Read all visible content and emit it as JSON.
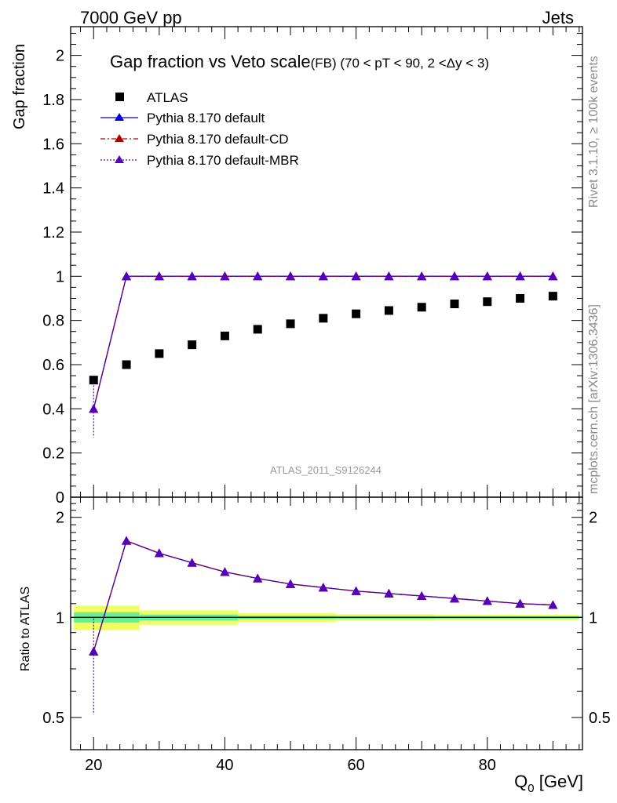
{
  "header": {
    "energy_label": "7000 GeV pp",
    "process_label": "Jets",
    "rivet_label": "Rivet 3.1.10, ≥ 100k events",
    "mcplots_label": "mcplots.cern.ch [arXiv:1306.3436]",
    "analysis_label": "ATLAS_2011_S9126244"
  },
  "colors": {
    "data": "#000000",
    "default": "#0000dd",
    "cd": "#aa0000",
    "mbr": "#5500bb",
    "band_green": "#66ee99",
    "band_yellow": "#eeff66",
    "axis": "#000000"
  },
  "chart_data": {
    "type": "scatter",
    "title_main": "Gap fraction vs Veto scale",
    "title_sub": "(FB) (70 < pT <  90, 2 <Δy < 3)",
    "xlabel": "Q",
    "xlabel_sub": "0",
    "xlabel_unit": " [GeV]",
    "ylabel_main": "Gap fraction",
    "ylabel_ratio": "Ratio to ATLAS",
    "xlim": [
      16.5,
      94.5
    ],
    "ylim_main": [
      0,
      2.13
    ],
    "ylim_ratio": [
      0.4,
      2.3
    ],
    "x_ticks": [
      20,
      40,
      60,
      80
    ],
    "x_tick_labels": [
      "20",
      "40",
      "60",
      "80"
    ],
    "y_ticks_main": [
      0,
      0.2,
      0.4,
      0.6,
      0.8,
      1,
      1.2,
      1.4,
      1.6,
      1.8,
      2
    ],
    "y_tick_labels_main": [
      "0",
      "0.2",
      "0.4",
      "0.6",
      "0.8",
      "1",
      "1.2",
      "1.4",
      "1.6",
      "1.8",
      "2"
    ],
    "y_ticks_ratio": [
      0.5,
      1,
      2
    ],
    "y_tick_labels_ratio": [
      "0.5",
      "1",
      "2"
    ],
    "x": [
      20,
      25,
      30,
      35,
      40,
      45,
      50,
      55,
      60,
      65,
      70,
      75,
      80,
      85,
      90
    ],
    "legend": {
      "atlas": "ATLAS",
      "default": "Pythia 8.170 default",
      "cd": "Pythia 8.170 default-CD",
      "mbr": "Pythia 8.170 default-MBR"
    },
    "series": [
      {
        "name": "ATLAS",
        "values": [
          0.53,
          0.6,
          0.65,
          0.69,
          0.73,
          0.76,
          0.785,
          0.81,
          0.83,
          0.845,
          0.86,
          0.875,
          0.885,
          0.9,
          0.91
        ]
      },
      {
        "name": "Pythia 8.170 default",
        "values": [
          0.4,
          1,
          1,
          1,
          1,
          1,
          1,
          1,
          1,
          1,
          1,
          1,
          1,
          1,
          1
        ],
        "yerr_low_first": 0.27
      },
      {
        "name": "Pythia 8.170 default-CD",
        "values": [
          0.4,
          1,
          1,
          1,
          1,
          1,
          1,
          1,
          1,
          1,
          1,
          1,
          1,
          1,
          1
        ]
      },
      {
        "name": "Pythia 8.170 default-MBR",
        "values": [
          0.4,
          1,
          1,
          1,
          1,
          1,
          1,
          1,
          1,
          1,
          1,
          1,
          1,
          1,
          1
        ]
      }
    ],
    "ratio": {
      "values": [
        0.79,
        1.7,
        1.56,
        1.46,
        1.37,
        1.31,
        1.26,
        1.23,
        1.2,
        1.18,
        1.16,
        1.14,
        1.12,
        1.1,
        1.09
      ],
      "yerr_low_first": 0.51,
      "band_x": [
        17,
        27,
        42,
        57,
        72,
        94
      ],
      "band_green_half": [
        0.035,
        0.02,
        0.012,
        0.01,
        0.008
      ],
      "band_yellow_half": [
        0.085,
        0.05,
        0.03,
        0.022,
        0.018
      ]
    }
  }
}
